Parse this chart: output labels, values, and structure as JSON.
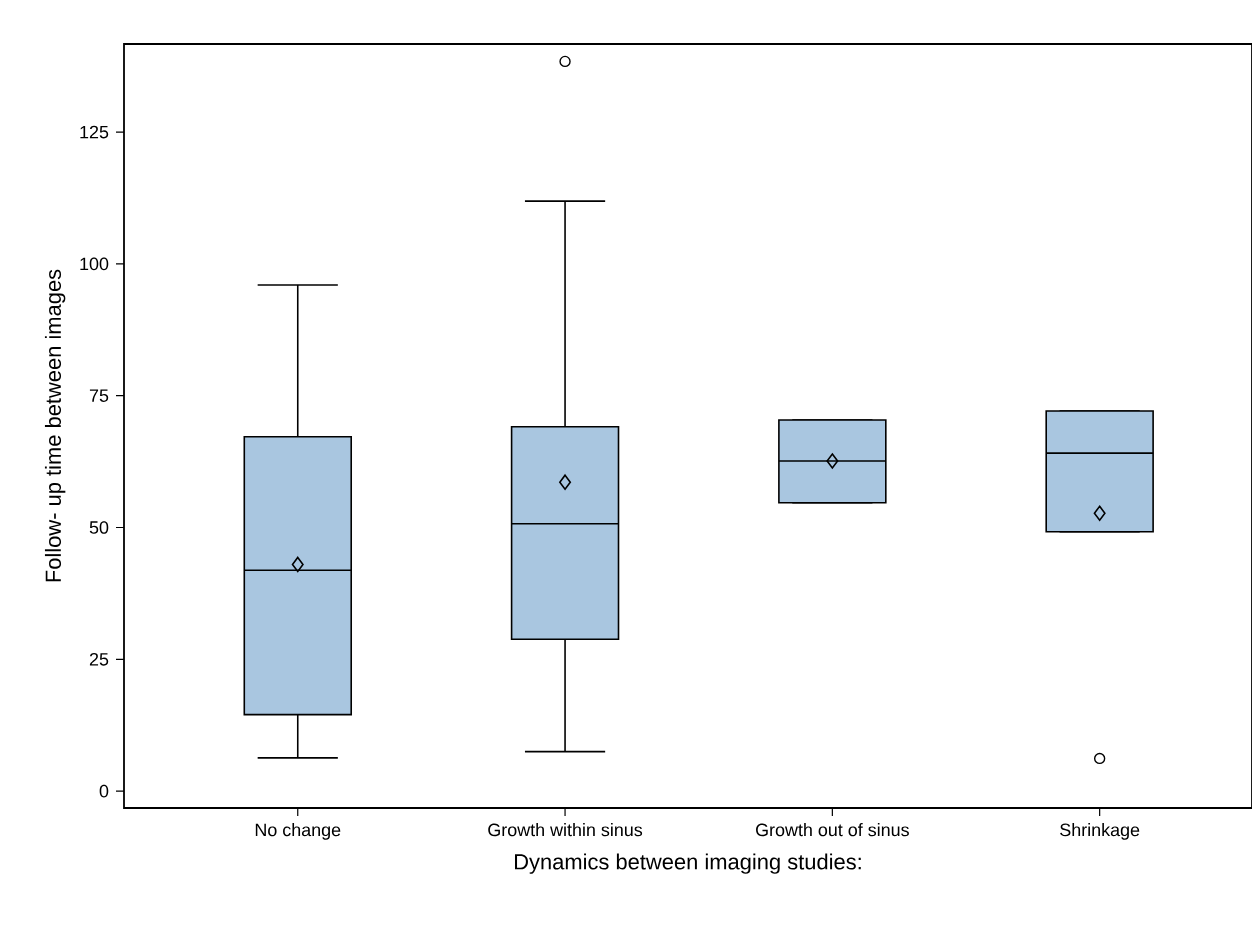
{
  "chart_data": {
    "type": "box",
    "xlabel": "Dynamics between imaging studies:",
    "ylabel": "Follow- up time between images",
    "categories": [
      "No change",
      "Growth within sinus",
      "Growth out of sinus",
      "Shrinkage"
    ],
    "boxes": [
      {
        "low": 6.3,
        "q1": 14.5,
        "median": 41.9,
        "q3": 67.2,
        "high": 96,
        "mean": 43
      },
      {
        "low": 7.5,
        "q1": 28.8,
        "median": 50.7,
        "q3": 69.1,
        "high": 111.9,
        "mean": 58.6,
        "outliers": [
          138.4
        ]
      },
      {
        "low": 54.7,
        "q1": 54.7,
        "median": 62.6,
        "q3": 70.4,
        "high": 70.4,
        "mean": 62.6
      },
      {
        "low": 49.2,
        "q1": 49.2,
        "median": 64.1,
        "q3": 72.1,
        "high": 72.1,
        "mean": 52.7,
        "outliers": [
          6.2
        ]
      }
    ],
    "color": "#a9c6e0",
    "ylim": [
      -3.2,
      141.7
    ],
    "yticks": [
      0,
      25,
      50,
      75,
      100,
      125
    ],
    "grid": false
  }
}
